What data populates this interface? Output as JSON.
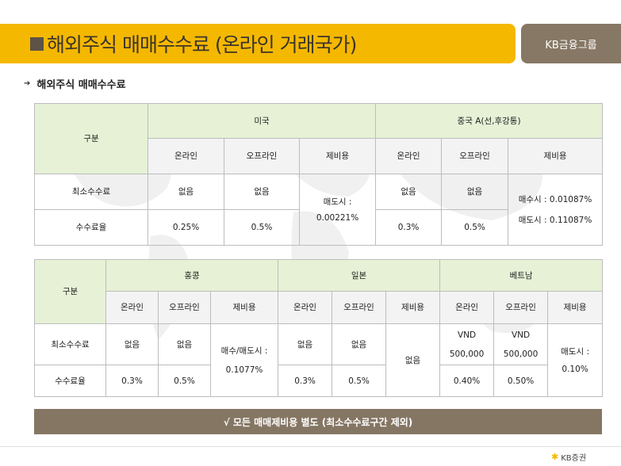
{
  "header": {
    "title": "해외주식 매매수수료 (온라인 거래국가)",
    "brand": "KB금융그룹"
  },
  "section_title": "해외주식 매매수수료",
  "table1": {
    "gubun": "구분",
    "us": "미국",
    "cn": "중국 A(선,후강통)",
    "online": "온라인",
    "offline": "오프라인",
    "extra": "제비용",
    "min_fee": "최소수수료",
    "rate": "수수료율",
    "us_min_on": "없음",
    "us_min_off": "없음",
    "us_rate_on": "0.25%",
    "us_rate_off": "0.5%",
    "us_extra_line1": "매도시 :",
    "us_extra_line2": "0.00221%",
    "cn_min_on": "없음",
    "cn_min_off": "없음",
    "cn_rate_on": "0.3%",
    "cn_rate_off": "0.5%",
    "cn_extra_line1": "매수시 : 0.01087%",
    "cn_extra_line2": "매도시 : 0.11087%"
  },
  "table2": {
    "gubun": "구분",
    "hk": "홍콩",
    "jp": "일본",
    "vn": "베트남",
    "online": "온라인",
    "offline": "오프라인",
    "extra": "제비용",
    "min_fee": "최소수수료",
    "rate": "수수료율",
    "hk_min_on": "없음",
    "hk_min_off": "없음",
    "hk_rate_on": "0.3%",
    "hk_rate_off": "0.5%",
    "hk_extra_line1": "매수/매도시 :",
    "hk_extra_line2": "0.1077%",
    "jp_min_on": "없음",
    "jp_min_off": "없음",
    "jp_rate_on": "0.3%",
    "jp_rate_off": "0.5%",
    "jp_extra": "없음",
    "vn_min_on_1": "VND",
    "vn_min_on_2": "500,000",
    "vn_min_off_1": "VND",
    "vn_min_off_2": "500,000",
    "vn_rate_on": "0.40%",
    "vn_rate_off": "0.50%",
    "vn_extra_line1": "매도시 :",
    "vn_extra_line2": "0.10%"
  },
  "note": "√ 모든 매매제비용 별도 (최소수수료구간 제외)",
  "footer_brand": "KB증권"
}
